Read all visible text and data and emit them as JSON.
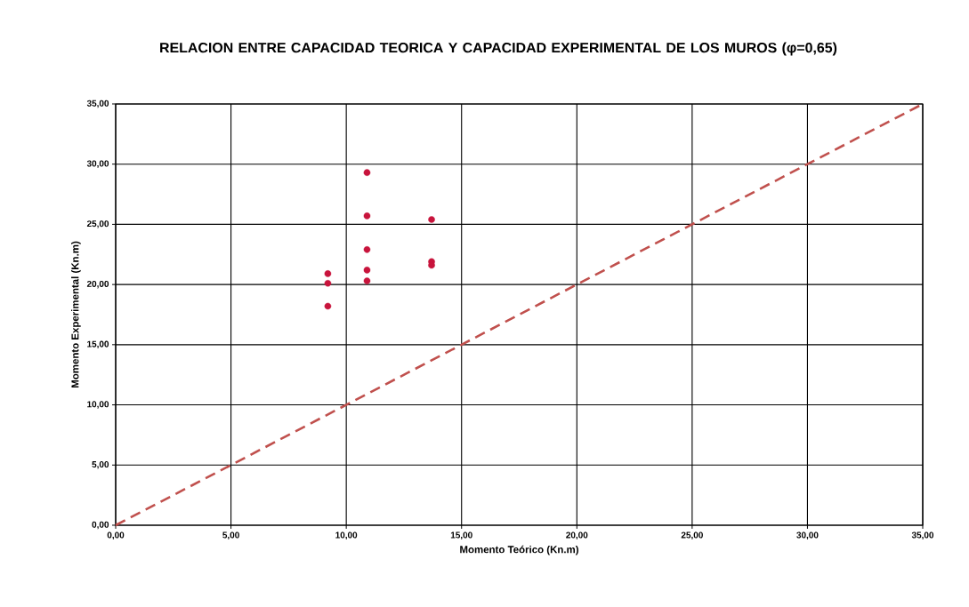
{
  "chart_data": {
    "type": "scatter",
    "title": "RELACION ENTRE CAPACIDAD TEORICA Y CAPACIDAD EXPERIMENTAL DE LOS MUROS (φ=0,65)",
    "xlabel": "Momento Teórico (Kn.m)",
    "ylabel": "Momento Experimental (Kn.m)",
    "xlim": [
      0,
      35
    ],
    "ylim": [
      0,
      35
    ],
    "xticks": [
      {
        "value": 0,
        "label": "0,00"
      },
      {
        "value": 5,
        "label": "5,00"
      },
      {
        "value": 10,
        "label": "10,00"
      },
      {
        "value": 15,
        "label": "15,00"
      },
      {
        "value": 20,
        "label": "20,00"
      },
      {
        "value": 25,
        "label": "25,00"
      },
      {
        "value": 30,
        "label": "30,00"
      },
      {
        "value": 35,
        "label": "35,00"
      }
    ],
    "yticks": [
      {
        "value": 0,
        "label": "0,00"
      },
      {
        "value": 5,
        "label": "5,00"
      },
      {
        "value": 10,
        "label": "10,00"
      },
      {
        "value": 15,
        "label": "15,00"
      },
      {
        "value": 20,
        "label": "20,00"
      },
      {
        "value": 25,
        "label": "25,00"
      },
      {
        "value": 30,
        "label": "30,00"
      },
      {
        "value": 35,
        "label": "35,00"
      }
    ],
    "grid": true,
    "series": [
      {
        "color": "#c8143c",
        "marker": "circle",
        "x": [
          9.2,
          9.2,
          9.2,
          10.9,
          10.9,
          10.9,
          10.9,
          10.9,
          13.7,
          13.7,
          13.7
        ],
        "values": [
          20.9,
          20.1,
          18.2,
          29.3,
          25.7,
          22.9,
          21.2,
          20.3,
          25.4,
          21.9,
          21.6
        ]
      },
      {
        "type": "line",
        "color": "#c0504d",
        "line_style": "dashed",
        "marker": "none",
        "x": [
          0,
          35
        ],
        "values": [
          0,
          35
        ]
      }
    ]
  }
}
